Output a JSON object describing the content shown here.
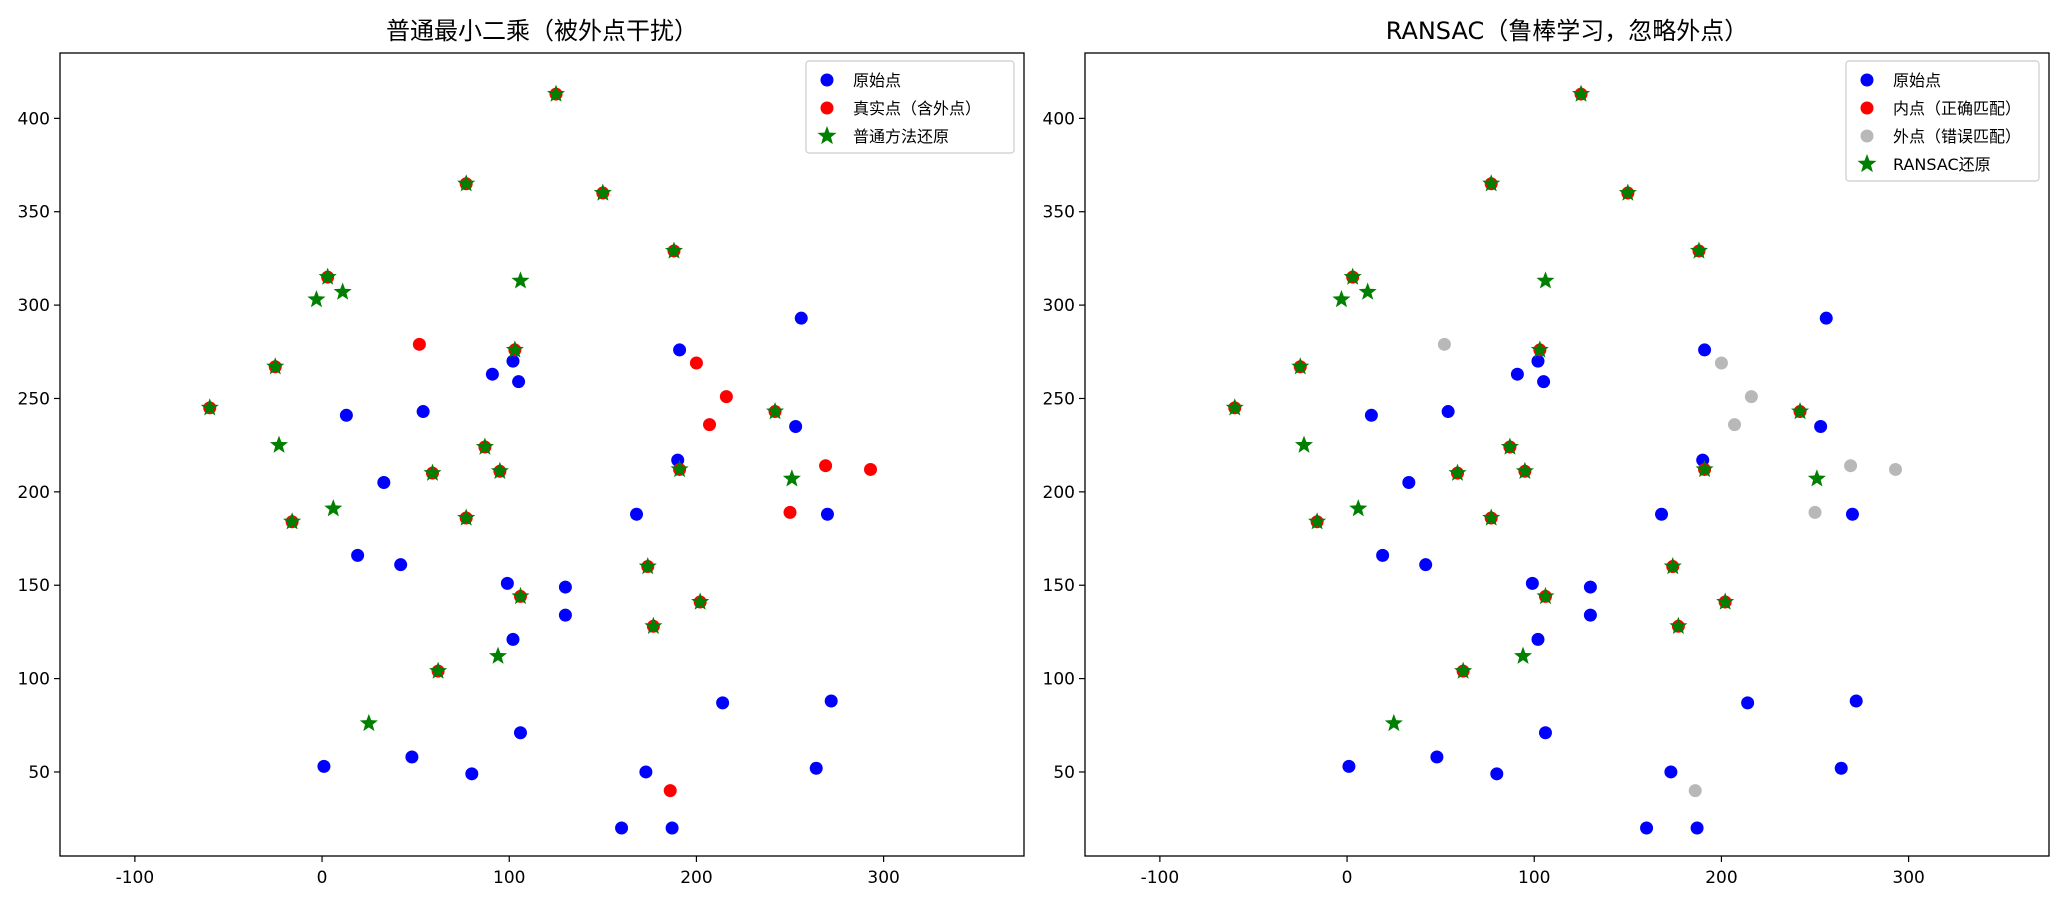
{
  "colors": {
    "original": "#0000ff",
    "true_outlier": "#ff0000",
    "restored": "#008000",
    "outlier_gray": "#b8b8b8"
  },
  "chart_data": [
    {
      "type": "scatter",
      "title": "普通最小二乘（被外点干扰）",
      "xlim": [
        -140,
        375
      ],
      "ylim": [
        5,
        435
      ],
      "xticks": [
        -100,
        0,
        100,
        200,
        300
      ],
      "yticks": [
        50,
        100,
        150,
        200,
        250,
        300,
        350,
        400
      ],
      "legend_position": "top-right",
      "series": [
        {
          "name": "原始点",
          "marker": "circle",
          "color": "#0000ff",
          "points": [
            [
              1,
              53
            ],
            [
              48,
              58
            ],
            [
              80,
              49
            ],
            [
              106,
              71
            ],
            [
              173,
              50
            ],
            [
              160,
              20
            ],
            [
              187,
              20
            ],
            [
              102,
              121
            ],
            [
              130,
              134
            ],
            [
              130,
              149
            ],
            [
              99,
              151
            ],
            [
              42,
              161
            ],
            [
              19,
              166
            ],
            [
              33,
              205
            ],
            [
              168,
              188
            ],
            [
              13,
              241
            ],
            [
              54,
              243
            ],
            [
              91,
              263
            ],
            [
              102,
              270
            ],
            [
              105,
              259
            ],
            [
              191,
              276
            ],
            [
              256,
              293
            ],
            [
              253,
              235
            ],
            [
              270,
              188
            ],
            [
              190,
              217
            ],
            [
              214,
              87
            ],
            [
              272,
              88
            ],
            [
              264,
              52
            ]
          ]
        },
        {
          "name": "真实点（含外点）",
          "marker": "circle",
          "color": "#ff0000",
          "points": [
            [
              125,
              413
            ],
            [
              77,
              365
            ],
            [
              150,
              360
            ],
            [
              188,
              329
            ],
            [
              3,
              315
            ],
            [
              103,
              276
            ],
            [
              52,
              279
            ],
            [
              200,
              269
            ],
            [
              -25,
              267
            ],
            [
              216,
              251
            ],
            [
              -60,
              245
            ],
            [
              207,
              236
            ],
            [
              242,
              243
            ],
            [
              87,
              224
            ],
            [
              59,
              210
            ],
            [
              95,
              211
            ],
            [
              191,
              212
            ],
            [
              269,
              214
            ],
            [
              293,
              212
            ],
            [
              250,
              189
            ],
            [
              -16,
              184
            ],
            [
              77,
              186
            ],
            [
              174,
              160
            ],
            [
              106,
              144
            ],
            [
              202,
              141
            ],
            [
              177,
              128
            ],
            [
              62,
              104
            ],
            [
              186,
              40
            ]
          ]
        },
        {
          "name": "普通方法还原",
          "marker": "star",
          "color": "#008000",
          "points": [
            [
              125,
              413
            ],
            [
              77,
              365
            ],
            [
              150,
              360
            ],
            [
              188,
              329
            ],
            [
              3,
              315
            ],
            [
              106,
              313
            ],
            [
              103,
              276
            ],
            [
              -25,
              267
            ],
            [
              -60,
              245
            ],
            [
              -3,
              303
            ],
            [
              11,
              307
            ],
            [
              -23,
              225
            ],
            [
              242,
              243
            ],
            [
              87,
              224
            ],
            [
              59,
              210
            ],
            [
              95,
              211
            ],
            [
              191,
              212
            ],
            [
              251,
              207
            ],
            [
              6,
              191
            ],
            [
              -16,
              184
            ],
            [
              77,
              186
            ],
            [
              174,
              160
            ],
            [
              106,
              144
            ],
            [
              202,
              141
            ],
            [
              177,
              128
            ],
            [
              62,
              104
            ],
            [
              94,
              112
            ],
            [
              25,
              76
            ]
          ]
        }
      ]
    },
    {
      "type": "scatter",
      "title": "RANSAC（鲁棒学习，忽略外点）",
      "xlim": [
        -140,
        375
      ],
      "ylim": [
        5,
        435
      ],
      "xticks": [
        -100,
        0,
        100,
        200,
        300
      ],
      "yticks": [
        50,
        100,
        150,
        200,
        250,
        300,
        350,
        400
      ],
      "legend_position": "top-right",
      "series": [
        {
          "name": "原始点",
          "marker": "circle",
          "color": "#0000ff",
          "points": [
            [
              1,
              53
            ],
            [
              48,
              58
            ],
            [
              80,
              49
            ],
            [
              106,
              71
            ],
            [
              173,
              50
            ],
            [
              160,
              20
            ],
            [
              187,
              20
            ],
            [
              102,
              121
            ],
            [
              130,
              134
            ],
            [
              130,
              149
            ],
            [
              99,
              151
            ],
            [
              42,
              161
            ],
            [
              19,
              166
            ],
            [
              33,
              205
            ],
            [
              168,
              188
            ],
            [
              13,
              241
            ],
            [
              54,
              243
            ],
            [
              91,
              263
            ],
            [
              102,
              270
            ],
            [
              105,
              259
            ],
            [
              191,
              276
            ],
            [
              256,
              293
            ],
            [
              253,
              235
            ],
            [
              270,
              188
            ],
            [
              190,
              217
            ],
            [
              214,
              87
            ],
            [
              272,
              88
            ],
            [
              264,
              52
            ]
          ]
        },
        {
          "name": "内点（正确匹配）",
          "marker": "circle",
          "color": "#ff0000",
          "points": [
            [
              125,
              413
            ],
            [
              77,
              365
            ],
            [
              150,
              360
            ],
            [
              188,
              329
            ],
            [
              3,
              315
            ],
            [
              103,
              276
            ],
            [
              -25,
              267
            ],
            [
              -60,
              245
            ],
            [
              242,
              243
            ],
            [
              87,
              224
            ],
            [
              59,
              210
            ],
            [
              95,
              211
            ],
            [
              191,
              212
            ],
            [
              -16,
              184
            ],
            [
              77,
              186
            ],
            [
              174,
              160
            ],
            [
              106,
              144
            ],
            [
              202,
              141
            ],
            [
              177,
              128
            ],
            [
              62,
              104
            ]
          ]
        },
        {
          "name": "外点（错误匹配）",
          "marker": "circle",
          "color": "#b8b8b8",
          "points": [
            [
              52,
              279
            ],
            [
              200,
              269
            ],
            [
              216,
              251
            ],
            [
              207,
              236
            ],
            [
              269,
              214
            ],
            [
              293,
              212
            ],
            [
              250,
              189
            ],
            [
              186,
              40
            ]
          ]
        },
        {
          "name": "RANSAC还原",
          "marker": "star",
          "color": "#008000",
          "points": [
            [
              125,
              413
            ],
            [
              77,
              365
            ],
            [
              150,
              360
            ],
            [
              188,
              329
            ],
            [
              3,
              315
            ],
            [
              106,
              313
            ],
            [
              103,
              276
            ],
            [
              -25,
              267
            ],
            [
              -60,
              245
            ],
            [
              -3,
              303
            ],
            [
              11,
              307
            ],
            [
              -23,
              225
            ],
            [
              242,
              243
            ],
            [
              87,
              224
            ],
            [
              59,
              210
            ],
            [
              95,
              211
            ],
            [
              191,
              212
            ],
            [
              251,
              207
            ],
            [
              6,
              191
            ],
            [
              -16,
              184
            ],
            [
              77,
              186
            ],
            [
              174,
              160
            ],
            [
              106,
              144
            ],
            [
              202,
              141
            ],
            [
              177,
              128
            ],
            [
              62,
              104
            ],
            [
              94,
              112
            ],
            [
              25,
              76
            ]
          ]
        }
      ]
    }
  ]
}
